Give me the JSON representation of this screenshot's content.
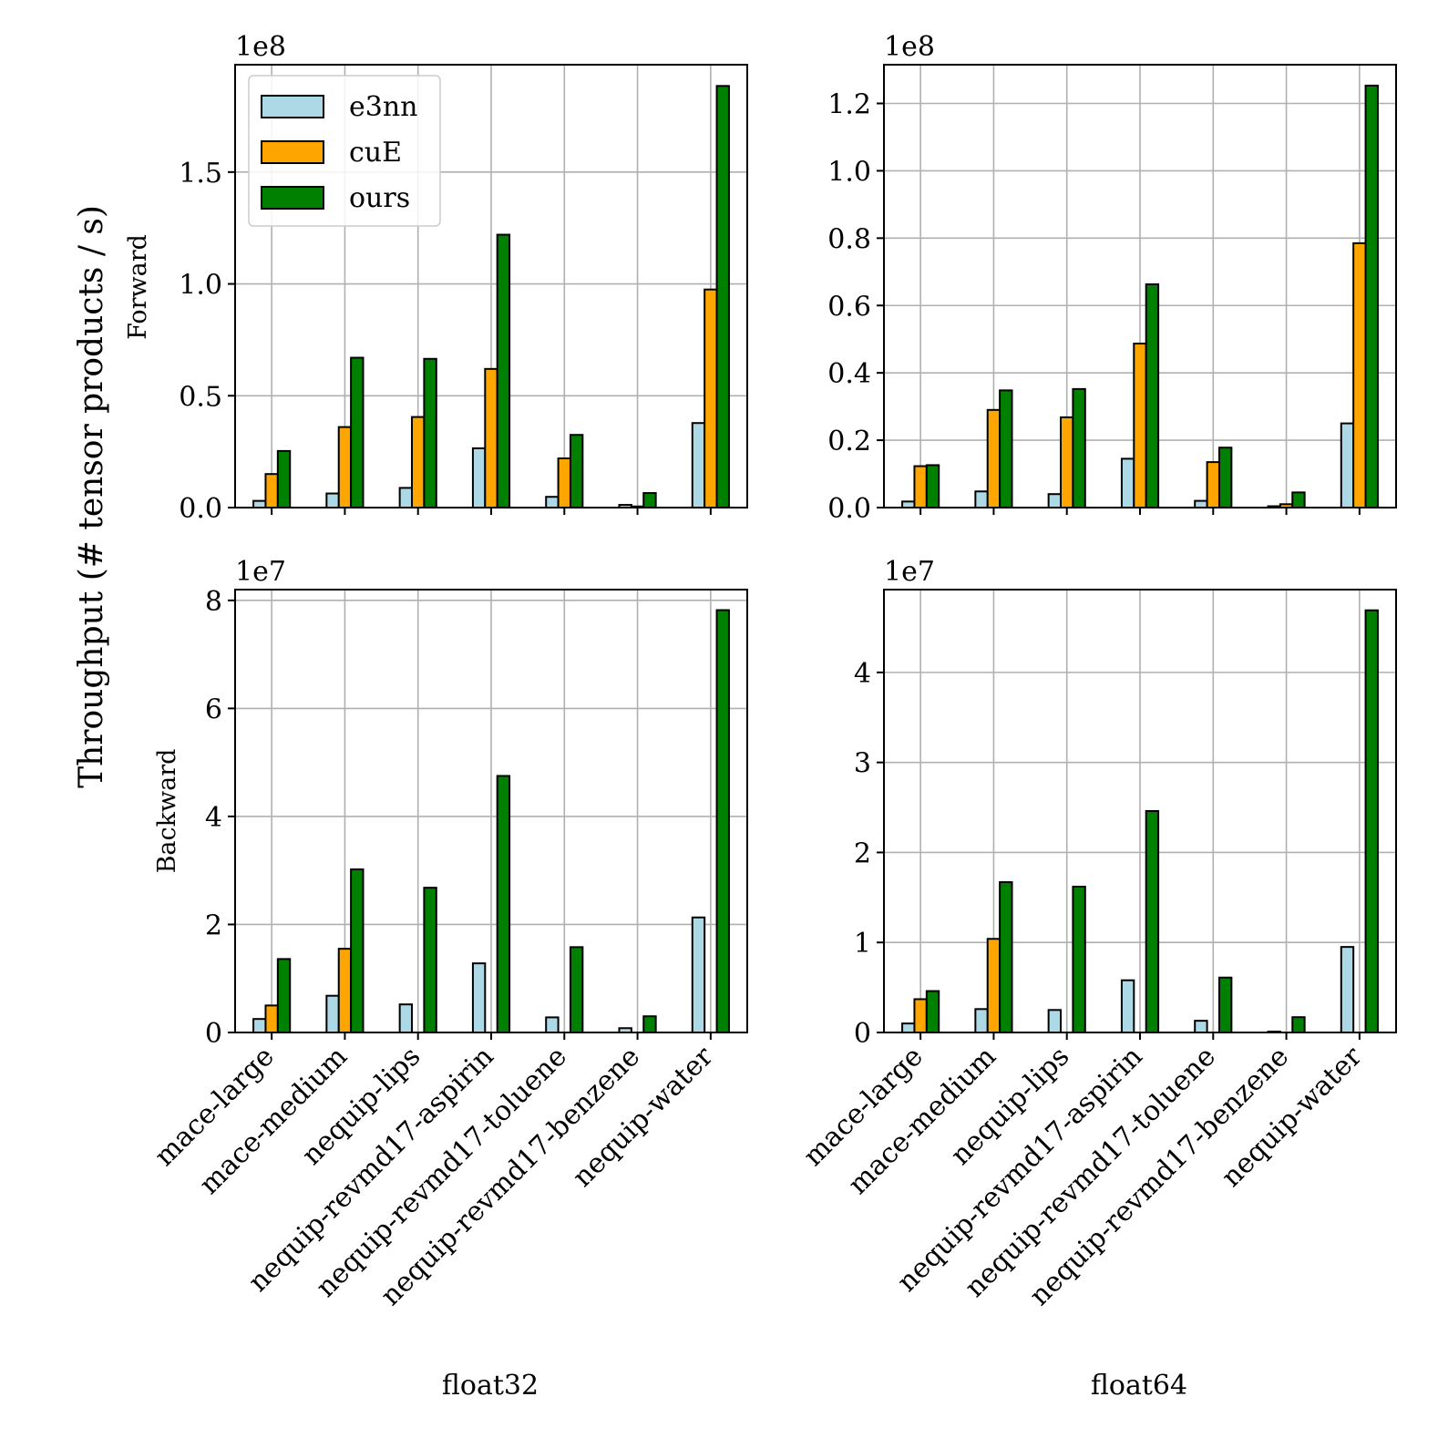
{
  "figure": {
    "ylabel": "Throughput (# tensor products / s)",
    "row_labels": [
      "Forward",
      "Backward"
    ],
    "col_labels": [
      "float32",
      "float64"
    ],
    "legend": [
      {
        "name": "e3nn",
        "color": "#add8e6"
      },
      {
        "name": "cuE",
        "color": "#ffa500"
      },
      {
        "name": "ours",
        "color": "#008000"
      }
    ]
  },
  "chart_data": [
    {
      "type": "bar",
      "panel": "forward-float32",
      "exponent_label": "1e8",
      "categories": [
        "mace-large",
        "mace-medium",
        "nequip-lips",
        "nequip-revmd17-aspirin",
        "nequip-revmd17-toluene",
        "nequip-revmd17-benzene",
        "nequip-water"
      ],
      "series": [
        {
          "name": "e3nn",
          "values": [
            0.03,
            0.063,
            0.088,
            0.265,
            0.048,
            0.012,
            0.378
          ]
        },
        {
          "name": "cuE",
          "values": [
            0.15,
            0.36,
            0.405,
            0.62,
            0.22,
            0.005,
            0.975
          ]
        },
        {
          "name": "ours",
          "values": [
            0.253,
            0.67,
            0.665,
            1.22,
            0.325,
            0.065,
            1.885
          ]
        }
      ],
      "ylim": [
        0,
        1.98
      ],
      "yticks": [
        0.0,
        0.5,
        1.0,
        1.5
      ],
      "ytick_labels": [
        "0.0",
        "0.5",
        "1.0",
        "1.5"
      ],
      "legend_position": "upper-left"
    },
    {
      "type": "bar",
      "panel": "forward-float64",
      "exponent_label": "1e8",
      "categories": [
        "mace-large",
        "mace-medium",
        "nequip-lips",
        "nequip-revmd17-aspirin",
        "nequip-revmd17-toluene",
        "nequip-revmd17-benzene",
        "nequip-water"
      ],
      "series": [
        {
          "name": "e3nn",
          "values": [
            0.018,
            0.048,
            0.04,
            0.145,
            0.02,
            0.004,
            0.25
          ]
        },
        {
          "name": "cuE",
          "values": [
            0.123,
            0.29,
            0.268,
            0.487,
            0.135,
            0.01,
            0.785
          ]
        },
        {
          "name": "ours",
          "values": [
            0.126,
            0.348,
            0.352,
            0.663,
            0.178,
            0.045,
            1.253
          ]
        }
      ],
      "ylim": [
        0,
        1.315
      ],
      "yticks": [
        0.0,
        0.2,
        0.4,
        0.6,
        0.8,
        1.0,
        1.2
      ],
      "ytick_labels": [
        "0.0",
        "0.2",
        "0.4",
        "0.6",
        "0.8",
        "1.0",
        "1.2"
      ]
    },
    {
      "type": "bar",
      "panel": "backward-float32",
      "exponent_label": "1e7",
      "categories": [
        "mace-large",
        "mace-medium",
        "nequip-lips",
        "nequip-revmd17-aspirin",
        "nequip-revmd17-toluene",
        "nequip-revmd17-benzene",
        "nequip-water"
      ],
      "series": [
        {
          "name": "e3nn",
          "values": [
            0.25,
            0.68,
            0.52,
            1.28,
            0.28,
            0.08,
            2.13
          ]
        },
        {
          "name": "cuE",
          "values": [
            0.5,
            1.55,
            0,
            0,
            0,
            0,
            0
          ]
        },
        {
          "name": "ours",
          "values": [
            1.36,
            3.02,
            2.68,
            4.75,
            1.58,
            0.3,
            7.82
          ]
        }
      ],
      "ylim": [
        0,
        8.2
      ],
      "yticks": [
        0,
        2,
        4,
        6,
        8
      ],
      "ytick_labels": [
        "0",
        "2",
        "4",
        "6",
        "8"
      ],
      "xlabel": "float32"
    },
    {
      "type": "bar",
      "panel": "backward-float64",
      "exponent_label": "1e7",
      "categories": [
        "mace-large",
        "mace-medium",
        "nequip-lips",
        "nequip-revmd17-aspirin",
        "nequip-revmd17-toluene",
        "nequip-revmd17-benzene",
        "nequip-water"
      ],
      "series": [
        {
          "name": "e3nn",
          "values": [
            0.1,
            0.26,
            0.25,
            0.58,
            0.13,
            0.01,
            0.95
          ]
        },
        {
          "name": "cuE",
          "values": [
            0.37,
            1.04,
            0,
            0,
            0,
            0,
            0
          ]
        },
        {
          "name": "ours",
          "values": [
            0.46,
            1.67,
            1.62,
            2.46,
            0.61,
            0.17,
            4.69
          ]
        }
      ],
      "ylim": [
        0,
        4.92
      ],
      "yticks": [
        0,
        1,
        2,
        3,
        4
      ],
      "ytick_labels": [
        "0",
        "1",
        "2",
        "3",
        "4"
      ],
      "xlabel": "float64"
    }
  ]
}
